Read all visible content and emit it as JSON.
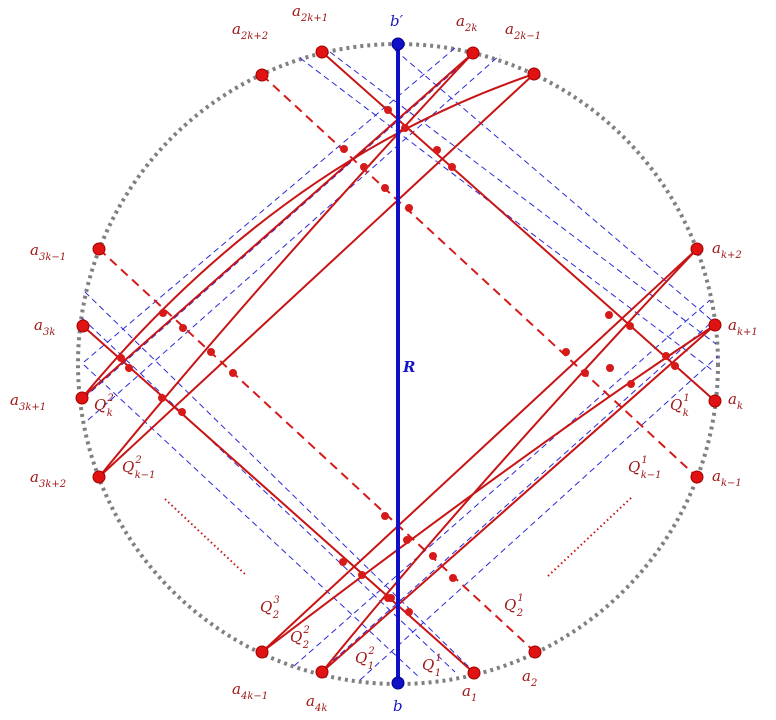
{
  "colors": {
    "red": "#d61a1a",
    "label_red": "#a01818",
    "blue": "#1010c8",
    "blue_dash": "#2a2ad8",
    "circle_gray": "#808080"
  },
  "labels": {
    "a2k1": {
      "base": "a",
      "sub": "2k+1"
    },
    "a2k": {
      "base": "a",
      "sub": "2k"
    },
    "a2k2": {
      "base": "a",
      "sub": "2k+2"
    },
    "a2km1": {
      "base": "a",
      "sub": "2k−1"
    },
    "bprime": {
      "base": "b′"
    },
    "a3km1": {
      "base": "a",
      "sub": "3k−1"
    },
    "a3k": {
      "base": "a",
      "sub": "3k"
    },
    "a3k1": {
      "base": "a",
      "sub": "3k+1"
    },
    "a3k2": {
      "base": "a",
      "sub": "3k+2"
    },
    "ak2": {
      "base": "a",
      "sub": "k+2"
    },
    "ak1": {
      "base": "a",
      "sub": "k+1"
    },
    "ak": {
      "base": "a",
      "sub": "k"
    },
    "akm1": {
      "base": "a",
      "sub": "k−1"
    },
    "R": {
      "base": "R"
    },
    "Qk2": {
      "base": "Q",
      "sub": "k",
      "sup": "2"
    },
    "Qk1": {
      "base": "Q",
      "sub": "k",
      "sup": "1"
    },
    "Qkm12": {
      "base": "Q",
      "sub": "k−1",
      "sup": "2"
    },
    "Qkm11": {
      "base": "Q",
      "sub": "k−1",
      "sup": "1"
    },
    "Q23": {
      "base": "Q",
      "sub": "2",
      "sup": "3"
    },
    "Q22": {
      "base": "Q",
      "sub": "2",
      "sup": "2"
    },
    "Q21": {
      "base": "Q",
      "sub": "2",
      "sup": "1"
    },
    "Q12": {
      "base": "Q",
      "sub": "1",
      "sup": "2"
    },
    "Q11": {
      "base": "Q",
      "sub": "1",
      "sup": "1"
    },
    "a4km1": {
      "base": "a",
      "sub": "4k−1"
    },
    "a4k": {
      "base": "a",
      "sub": "4k"
    },
    "b": {
      "base": "b"
    },
    "a1": {
      "base": "a",
      "sub": "1"
    },
    "a2": {
      "base": "a",
      "sub": "2"
    }
  }
}
